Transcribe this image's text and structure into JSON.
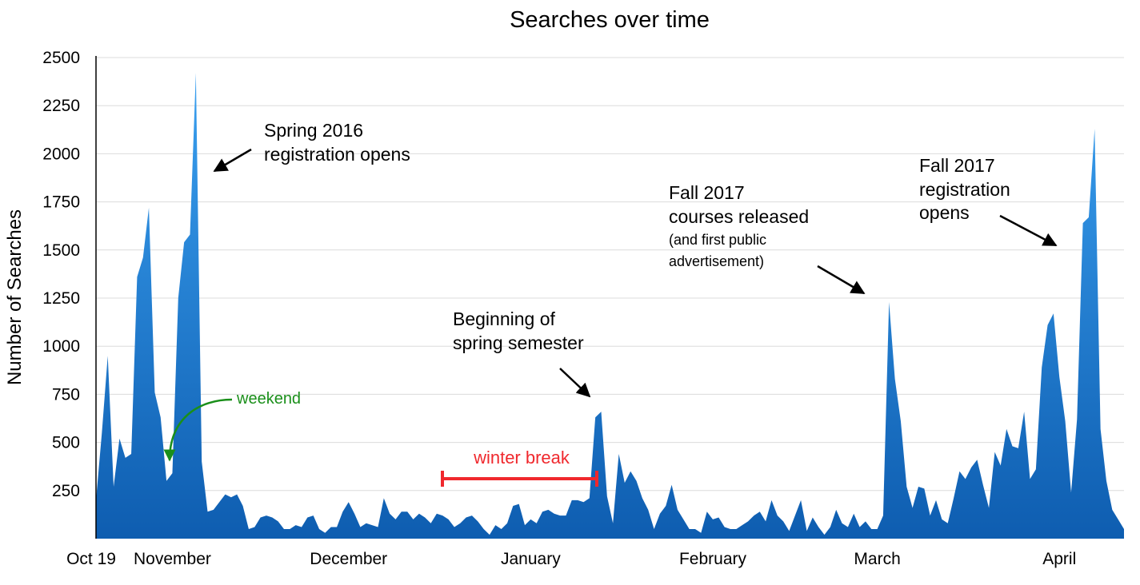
{
  "chart_data": {
    "type": "area",
    "title": "Searches over time",
    "xlabel": "",
    "ylabel": "Number of Searches",
    "ylim": [
      0,
      2500
    ],
    "yticks": [
      250,
      500,
      750,
      1000,
      1250,
      1500,
      1750,
      2000,
      2250,
      2500
    ],
    "x_start": "Oct 19",
    "x_tick_labels": [
      {
        "label": "Oct 19",
        "day": 0
      },
      {
        "label": "November",
        "day": 13
      },
      {
        "label": "December",
        "day": 43
      },
      {
        "label": "January",
        "day": 74
      },
      {
        "label": "February",
        "day": 105
      },
      {
        "label": "March",
        "day": 133
      },
      {
        "label": "April",
        "day": 164
      }
    ],
    "grid": true,
    "series_color": "#1f78c8",
    "values": [
      200,
      550,
      950,
      270,
      520,
      420,
      440,
      1360,
      1460,
      1720,
      760,
      630,
      300,
      340,
      1250,
      1540,
      1580,
      2420,
      400,
      140,
      150,
      190,
      230,
      215,
      230,
      170,
      50,
      60,
      110,
      120,
      110,
      90,
      50,
      50,
      70,
      60,
      110,
      120,
      50,
      30,
      60,
      60,
      140,
      190,
      130,
      60,
      80,
      70,
      60,
      210,
      130,
      100,
      140,
      140,
      100,
      130,
      110,
      80,
      130,
      120,
      100,
      60,
      80,
      110,
      120,
      90,
      50,
      20,
      70,
      50,
      80,
      170,
      180,
      70,
      100,
      80,
      140,
      150,
      130,
      120,
      120,
      200,
      200,
      190,
      210,
      630,
      660,
      220,
      80,
      440,
      290,
      350,
      300,
      210,
      150,
      50,
      130,
      170,
      280,
      150,
      100,
      50,
      50,
      30,
      140,
      100,
      110,
      60,
      50,
      50,
      70,
      90,
      120,
      140,
      90,
      200,
      120,
      90,
      40,
      120,
      200,
      40,
      110,
      60,
      20,
      60,
      150,
      80,
      60,
      130,
      60,
      90,
      50,
      50,
      120,
      1230,
      830,
      610,
      270,
      160,
      270,
      260,
      120,
      200,
      100,
      80,
      210,
      350,
      310,
      370,
      410,
      280,
      160,
      450,
      380,
      570,
      480,
      470,
      660,
      310,
      360,
      890,
      1110,
      1170,
      840,
      610,
      240,
      620,
      1640,
      1670,
      2130,
      570,
      300,
      150,
      100,
      50
    ]
  },
  "annotations": {
    "spring_2016": [
      "Spring 2016",
      "registration opens"
    ],
    "beginning": [
      "Beginning of",
      "spring semester"
    ],
    "fall_courses": [
      "Fall 2017",
      "courses released"
    ],
    "fall_courses_note": [
      "(and first public",
      "advertisement)"
    ],
    "fall_registration": [
      "Fall 2017",
      "registration",
      "opens"
    ],
    "weekend": "weekend",
    "winter_break": "winter break"
  },
  "colors": {
    "area_top": "#3aa0f0",
    "area_bottom": "#0e5db0",
    "weekend": "#1a8f1a",
    "winter_break": "#f0282d",
    "grid": "#dcdcdc"
  }
}
